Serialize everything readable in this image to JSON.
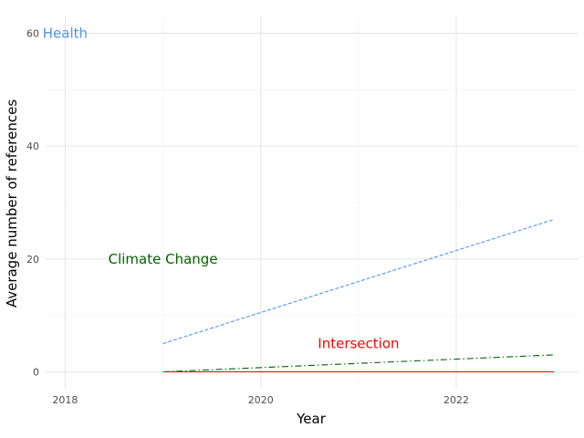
{
  "chart_data": {
    "type": "line",
    "xlabel": "Year",
    "ylabel": "Average number of references",
    "xlim": [
      2017.8,
      2023.25
    ],
    "ylim": [
      -3,
      63
    ],
    "x_ticks": [
      2018,
      2020,
      2022
    ],
    "y_ticks": [
      0,
      20,
      40,
      60
    ],
    "x_tick_labels": [
      "2018",
      "2020",
      "2022"
    ],
    "y_tick_labels": [
      "0",
      "20",
      "40",
      "60"
    ],
    "grid": true,
    "legend": "none",
    "series": [
      {
        "key": "health",
        "color": "#4f94f0",
        "dash": "4 2",
        "x": [
          2019,
          2023
        ],
        "y": [
          5,
          27
        ]
      },
      {
        "key": "climate",
        "color": "#006400",
        "dash": "7 3 1.5 3",
        "x": [
          2019,
          2023
        ],
        "y": [
          0,
          3
        ]
      },
      {
        "key": "intersection",
        "color": "#ff0000",
        "dash": "",
        "x": [
          2019,
          2023
        ],
        "y": [
          0,
          0
        ]
      }
    ],
    "annotations": [
      {
        "text": "Health",
        "x": 2018.0,
        "y": 60,
        "color": "#4f94f0",
        "anchor": "middle"
      },
      {
        "text": "Climate Change",
        "x": 2019.0,
        "y": 20,
        "color": "#006400",
        "anchor": "middle"
      },
      {
        "text": "Intersection",
        "x": 2021.0,
        "y": 5,
        "color": "#ff0000",
        "anchor": "middle"
      }
    ]
  }
}
